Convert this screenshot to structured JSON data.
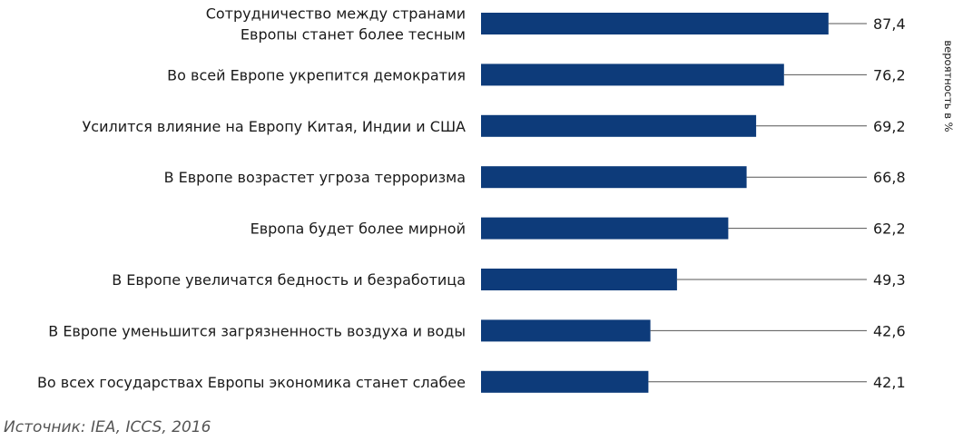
{
  "chart_data": {
    "type": "bar",
    "orientation": "horizontal",
    "categories": [
      [
        "Сотрудничество между странами",
        "Европы станет более тесным"
      ],
      [
        "Во всей Европе укрепится демократия"
      ],
      [
        "Усилится влияние на Европу Китая, Индии и США"
      ],
      [
        "В Европе возрастет угроза терроризма"
      ],
      [
        "Европа будет более мирной"
      ],
      [
        "В Европе увеличатся бедность и безработица"
      ],
      [
        "В Европе уменьшится загрязненность воздуха и воды"
      ],
      [
        "Во всех государствах Европы экономика станет слабее"
      ]
    ],
    "values": [
      87.4,
      76.2,
      69.2,
      66.8,
      62.2,
      49.3,
      42.6,
      42.1
    ],
    "value_labels": [
      "87,4",
      "76,2",
      "69,2",
      "66,8",
      "62,2",
      "49,3",
      "42,6",
      "42,1"
    ],
    "ylabel": "вероятность в %",
    "xlim": [
      0,
      100
    ],
    "bar_color": "#0d3b7a",
    "leader_color": "#555555"
  },
  "source": "Источник: IEA, ICCS, 2016"
}
